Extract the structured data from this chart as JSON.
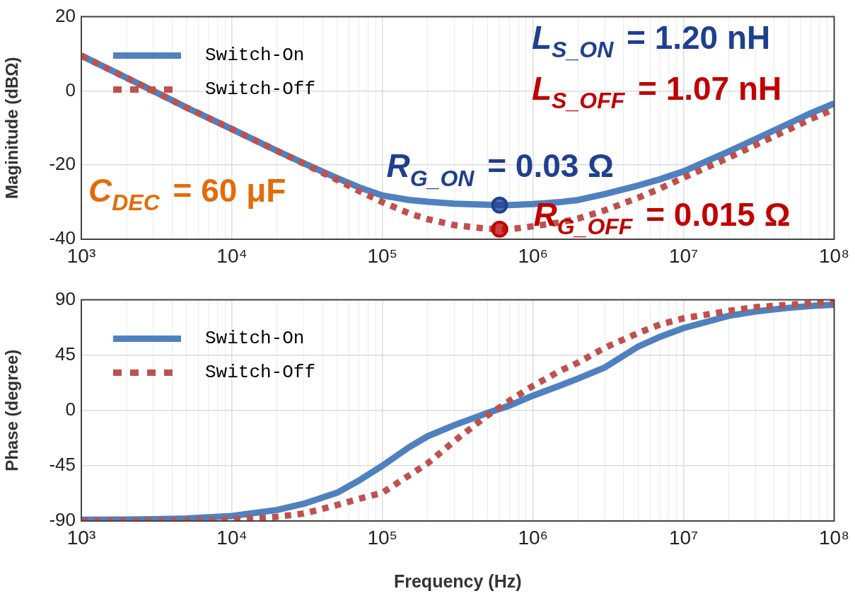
{
  "chart_data": [
    {
      "type": "line",
      "ylabel": "Maginitude (dBΩ)",
      "log": "x",
      "grid": true,
      "legend": "top left",
      "marker": "none",
      "x": [
        1000,
        2000,
        3000,
        5000,
        10000,
        20000,
        30000,
        50000,
        70000,
        100000,
        150000,
        200000,
        300000,
        500000,
        700000,
        1000000,
        1500000,
        2000000,
        3000000,
        5000000,
        7000000,
        10000000,
        20000000,
        30000000,
        50000000,
        70000000,
        100000000
      ],
      "series": [
        {
          "name": "Switch-On",
          "color": "#4f81c0",
          "line_style": "solid",
          "values": [
            9.5,
            3.5,
            0,
            -4.5,
            -10.3,
            -16.2,
            -19.5,
            -23.5,
            -26,
            -28.2,
            -29.4,
            -29.9,
            -30.4,
            -30.7,
            -30.8,
            -30.5,
            -30,
            -29.4,
            -27.8,
            -25.5,
            -23.8,
            -21.7,
            -16.3,
            -13,
            -8.8,
            -6,
            -3.4
          ]
        },
        {
          "name": "Switch-Off",
          "color": "#c0504d",
          "line_style": "dotted",
          "values": [
            9.5,
            3.5,
            0,
            -4.5,
            -10.3,
            -16.2,
            -19.6,
            -24,
            -27,
            -30,
            -33,
            -34.6,
            -36.2,
            -37.2,
            -37.3,
            -36.5,
            -35.5,
            -34.4,
            -32.2,
            -28.8,
            -26.3,
            -23.4,
            -18,
            -14.6,
            -10.4,
            -7.6,
            -4.9
          ]
        }
      ],
      "xlim": [
        1000,
        100000000
      ],
      "xticks": [
        {
          "value": 1000,
          "label": "10³"
        },
        {
          "value": 2000,
          "label": null
        },
        {
          "value": 3000,
          "label": null
        },
        {
          "value": 4000,
          "label": null
        },
        {
          "value": 5000,
          "label": null
        },
        {
          "value": 6000,
          "label": null
        },
        {
          "value": 7000,
          "label": null
        },
        {
          "value": 8000,
          "label": null
        },
        {
          "value": 9000,
          "label": null
        },
        {
          "value": 10000,
          "label": "10⁴"
        },
        {
          "value": 20000,
          "label": null
        },
        {
          "value": 30000,
          "label": null
        },
        {
          "value": 40000,
          "label": null
        },
        {
          "value": 50000,
          "label": null
        },
        {
          "value": 60000,
          "label": null
        },
        {
          "value": 70000,
          "label": null
        },
        {
          "value": 80000,
          "label": null
        },
        {
          "value": 90000,
          "label": null
        },
        {
          "value": 100000,
          "label": "10⁵"
        },
        {
          "value": 200000,
          "label": null
        },
        {
          "value": 300000,
          "label": null
        },
        {
          "value": 400000,
          "label": null
        },
        {
          "value": 500000,
          "label": null
        },
        {
          "value": 600000,
          "label": null
        },
        {
          "value": 700000,
          "label": null
        },
        {
          "value": 800000,
          "label": null
        },
        {
          "value": 900000,
          "label": null
        },
        {
          "value": 1000000,
          "label": "10⁶"
        },
        {
          "value": 2000000,
          "label": null
        },
        {
          "value": 3000000,
          "label": null
        },
        {
          "value": 4000000,
          "label": null
        },
        {
          "value": 5000000,
          "label": null
        },
        {
          "value": 6000000,
          "label": null
        },
        {
          "value": 7000000,
          "label": null
        },
        {
          "value": 8000000,
          "label": null
        },
        {
          "value": 9000000,
          "label": null
        },
        {
          "value": 10000000,
          "label": "10⁷"
        },
        {
          "value": 20000000,
          "label": null
        },
        {
          "value": 30000000,
          "label": null
        },
        {
          "value": 40000000,
          "label": null
        },
        {
          "value": 50000000,
          "label": null
        },
        {
          "value": 60000000,
          "label": null
        },
        {
          "value": 70000000,
          "label": null
        },
        {
          "value": 80000000,
          "label": null
        },
        {
          "value": 90000000,
          "label": null
        },
        {
          "value": 100000000,
          "label": "10⁸"
        }
      ],
      "ylim": [
        -40,
        20
      ],
      "yticks": [
        -40,
        -20,
        0,
        20
      ],
      "annotations": [
        "C$_{DEC}$ = 60 μF",
        "L$_{S_ON}$ = 1.20 nH",
        "L$_{S_OFF}$ = 1.07 nH",
        {
          "text": "R$_{G_ON}$ = 0.03 Ω",
          "x": 600000,
          "y": -30.8
        },
        {
          "text": "R$_{G_OFF}$ = 0.015 Ω",
          "x": 600000,
          "y": -37.3
        }
      ]
    },
    {
      "type": "line",
      "xlabel": "Frequency (Hz)",
      "ylabel": "Phase (degree)",
      "log": "x",
      "grid": true,
      "legend": "top left",
      "marker": "none",
      "x": [
        1000,
        2000,
        3000,
        5000,
        10000,
        20000,
        30000,
        50000,
        70000,
        100000,
        150000,
        200000,
        300000,
        500000,
        700000,
        1000000,
        1500000,
        2000000,
        3000000,
        5000000,
        7000000,
        10000000,
        20000000,
        30000000,
        50000000,
        70000000,
        100000000
      ],
      "series": [
        {
          "name": "Switch-On",
          "color": "#4f81c0",
          "line_style": "solid",
          "values": [
            -89,
            -88.8,
            -88.5,
            -88,
            -86,
            -81,
            -76,
            -67,
            -57,
            -45,
            -30,
            -21,
            -12,
            -2,
            4,
            12,
            20,
            26,
            35,
            52,
            60,
            67,
            77,
            80.5,
            83.5,
            85,
            86
          ]
        },
        {
          "name": "Switch-Off",
          "color": "#c0504d",
          "line_style": "dotted",
          "values": [
            -90,
            -90,
            -90,
            -89.8,
            -89,
            -86.5,
            -84,
            -77,
            -72,
            -67,
            -53,
            -43,
            -25,
            -4,
            8,
            20,
            32,
            39,
            51,
            63,
            70,
            75,
            81,
            84,
            86,
            87,
            88
          ]
        }
      ],
      "xlim": [
        1000,
        100000000
      ],
      "xticks": [
        {
          "value": 1000,
          "label": "10³"
        },
        {
          "value": 2000,
          "label": null
        },
        {
          "value": 3000,
          "label": null
        },
        {
          "value": 4000,
          "label": null
        },
        {
          "value": 5000,
          "label": null
        },
        {
          "value": 6000,
          "label": null
        },
        {
          "value": 7000,
          "label": null
        },
        {
          "value": 8000,
          "label": null
        },
        {
          "value": 9000,
          "label": null
        },
        {
          "value": 10000,
          "label": "10⁴"
        },
        {
          "value": 20000,
          "label": null
        },
        {
          "value": 30000,
          "label": null
        },
        {
          "value": 40000,
          "label": null
        },
        {
          "value": 50000,
          "label": null
        },
        {
          "value": 60000,
          "label": null
        },
        {
          "value": 70000,
          "label": null
        },
        {
          "value": 80000,
          "label": null
        },
        {
          "value": 90000,
          "label": null
        },
        {
          "value": 100000,
          "label": "10⁵"
        },
        {
          "value": 200000,
          "label": null
        },
        {
          "value": 300000,
          "label": null
        },
        {
          "value": 400000,
          "label": null
        },
        {
          "value": 500000,
          "label": null
        },
        {
          "value": 600000,
          "label": null
        },
        {
          "value": 700000,
          "label": null
        },
        {
          "value": 800000,
          "label": null
        },
        {
          "value": 900000,
          "label": null
        },
        {
          "value": 1000000,
          "label": "10⁶"
        },
        {
          "value": 2000000,
          "label": null
        },
        {
          "value": 3000000,
          "label": null
        },
        {
          "value": 4000000,
          "label": null
        },
        {
          "value": 5000000,
          "label": null
        },
        {
          "value": 6000000,
          "label": null
        },
        {
          "value": 7000000,
          "label": null
        },
        {
          "value": 8000000,
          "label": null
        },
        {
          "value": 9000000,
          "label": null
        },
        {
          "value": 10000000,
          "label": "10⁷"
        },
        {
          "value": 20000000,
          "label": null
        },
        {
          "value": 30000000,
          "label": null
        },
        {
          "value": 40000000,
          "label": null
        },
        {
          "value": 50000000,
          "label": null
        },
        {
          "value": 60000000,
          "label": null
        },
        {
          "value": 70000000,
          "label": null
        },
        {
          "value": 80000000,
          "label": null
        },
        {
          "value": 90000000,
          "label": null
        },
        {
          "value": 100000000,
          "label": "10⁸"
        }
      ],
      "ylim": [
        -90,
        90
      ],
      "yticks": [
        -90,
        -45,
        0,
        45,
        90
      ]
    }
  ]
}
